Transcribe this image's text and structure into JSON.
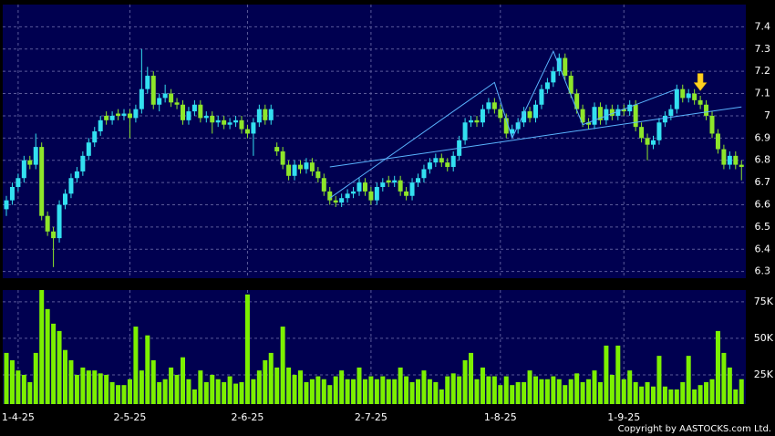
{
  "chart_data": {
    "type": "candlestick",
    "categories": [
      null,
      null,
      "1-4-25",
      null,
      null,
      null,
      null,
      null,
      null,
      null,
      null,
      null,
      null,
      null,
      null,
      null,
      null,
      null,
      null,
      null,
      null,
      "2-5-25",
      null,
      null,
      null,
      null,
      null,
      null,
      null,
      null,
      null,
      null,
      null,
      null,
      null,
      null,
      null,
      null,
      null,
      null,
      null,
      "2-6-25",
      null,
      null,
      null,
      null,
      null,
      null,
      null,
      null,
      null,
      null,
      null,
      null,
      null,
      null,
      null,
      null,
      null,
      null,
      null,
      null,
      "2-7-25",
      null,
      null,
      null,
      null,
      null,
      null,
      null,
      null,
      null,
      null,
      null,
      null,
      null,
      null,
      null,
      null,
      null,
      null,
      null,
      null,
      null,
      "1-8-25",
      null,
      null,
      null,
      null,
      null,
      null,
      null,
      null,
      null,
      null,
      null,
      null,
      null,
      null,
      null,
      null,
      null,
      null,
      null,
      null,
      "1-9-25",
      null,
      null,
      null,
      null,
      null,
      null,
      null,
      null,
      null,
      null,
      null,
      null,
      null,
      null,
      null,
      null,
      null,
      null,
      null,
      null
    ],
    "candles": [
      [
        6.58,
        6.64,
        6.55,
        6.62
      ],
      [
        6.62,
        6.7,
        6.6,
        6.68
      ],
      [
        6.68,
        6.74,
        6.66,
        6.72
      ],
      [
        6.72,
        6.82,
        6.7,
        6.8
      ],
      [
        6.8,
        6.82,
        6.76,
        6.78
      ],
      [
        6.78,
        6.92,
        6.76,
        6.86
      ],
      [
        6.86,
        6.88,
        6.53,
        6.55
      ],
      [
        6.55,
        6.57,
        6.46,
        6.48
      ],
      [
        6.48,
        6.5,
        6.32,
        6.45
      ],
      [
        6.45,
        6.62,
        6.43,
        6.6
      ],
      [
        6.6,
        6.67,
        6.58,
        6.65
      ],
      [
        6.65,
        6.74,
        6.63,
        6.72
      ],
      [
        6.72,
        6.77,
        6.7,
        6.75
      ],
      [
        6.75,
        6.84,
        6.73,
        6.82
      ],
      [
        6.82,
        6.9,
        6.8,
        6.88
      ],
      [
        6.88,
        6.95,
        6.86,
        6.93
      ],
      [
        6.93,
        7.0,
        6.91,
        6.98
      ],
      [
        7.0,
        7.02,
        6.96,
        6.98
      ],
      [
        6.98,
        7.02,
        6.96,
        7.0
      ],
      [
        7.01,
        7.03,
        6.98,
        7.0
      ],
      [
        7.0,
        7.03,
        6.98,
        7.01
      ],
      [
        7.01,
        7.03,
        6.9,
        6.99
      ],
      [
        6.99,
        7.05,
        6.97,
        7.03
      ],
      [
        7.03,
        7.3,
        7.01,
        7.12
      ],
      [
        7.12,
        7.22,
        7.1,
        7.18
      ],
      [
        7.18,
        7.2,
        7.03,
        7.05
      ],
      [
        7.05,
        7.1,
        7.02,
        7.08
      ],
      [
        7.08,
        7.14,
        7.06,
        7.1
      ],
      [
        7.1,
        7.12,
        7.04,
        7.06
      ],
      [
        7.06,
        7.08,
        7.03,
        7.05
      ],
      [
        7.05,
        7.07,
        6.96,
        6.98
      ],
      [
        6.98,
        7.04,
        6.96,
        7.02
      ],
      [
        7.02,
        7.07,
        7.0,
        7.05
      ],
      [
        7.05,
        7.07,
        6.97,
        6.99
      ],
      [
        6.99,
        7.02,
        6.97,
        7.0
      ],
      [
        7.0,
        7.02,
        6.92,
        6.97
      ],
      [
        6.97,
        7.0,
        6.95,
        6.98
      ],
      [
        6.98,
        7.0,
        6.94,
        6.96
      ],
      [
        6.96,
        6.99,
        6.94,
        6.97
      ],
      [
        6.97,
        7.0,
        6.95,
        6.98
      ],
      [
        6.98,
        7.0,
        6.92,
        6.94
      ],
      [
        6.94,
        6.96,
        6.9,
        6.92
      ],
      [
        6.92,
        6.99,
        6.82,
        6.97
      ],
      [
        6.97,
        7.05,
        6.95,
        7.03
      ],
      [
        7.03,
        7.05,
        6.96,
        6.98
      ],
      [
        6.98,
        7.05,
        6.96,
        7.03
      ],
      [
        6.86,
        6.88,
        6.82,
        6.84
      ],
      [
        6.84,
        6.86,
        6.76,
        6.78
      ],
      [
        6.78,
        6.8,
        6.71,
        6.73
      ],
      [
        6.73,
        6.8,
        6.71,
        6.78
      ],
      [
        6.78,
        6.8,
        6.74,
        6.76
      ],
      [
        6.76,
        6.81,
        6.74,
        6.79
      ],
      [
        6.79,
        6.81,
        6.73,
        6.75
      ],
      [
        6.75,
        6.77,
        6.7,
        6.72
      ],
      [
        6.72,
        6.74,
        6.64,
        6.66
      ],
      [
        6.66,
        6.68,
        6.6,
        6.62
      ],
      [
        6.62,
        6.64,
        6.59,
        6.61
      ],
      [
        6.61,
        6.65,
        6.59,
        6.63
      ],
      [
        6.63,
        6.67,
        6.61,
        6.65
      ],
      [
        6.65,
        6.68,
        6.63,
        6.66
      ],
      [
        6.66,
        6.72,
        6.64,
        6.7
      ],
      [
        6.7,
        6.72,
        6.64,
        6.66
      ],
      [
        6.66,
        6.68,
        6.6,
        6.62
      ],
      [
        6.62,
        6.7,
        6.6,
        6.68
      ],
      [
        6.68,
        6.72,
        6.66,
        6.7
      ],
      [
        6.71,
        6.73,
        6.68,
        6.7
      ],
      [
        6.7,
        6.73,
        6.68,
        6.71
      ],
      [
        6.71,
        6.73,
        6.64,
        6.66
      ],
      [
        6.66,
        6.68,
        6.62,
        6.64
      ],
      [
        6.64,
        6.72,
        6.62,
        6.7
      ],
      [
        6.7,
        6.74,
        6.68,
        6.72
      ],
      [
        6.72,
        6.78,
        6.7,
        6.76
      ],
      [
        6.76,
        6.81,
        6.74,
        6.79
      ],
      [
        6.79,
        6.83,
        6.77,
        6.81
      ],
      [
        6.81,
        6.83,
        6.77,
        6.79
      ],
      [
        6.79,
        6.81,
        6.75,
        6.77
      ],
      [
        6.77,
        6.84,
        6.75,
        6.82
      ],
      [
        6.82,
        6.91,
        6.8,
        6.89
      ],
      [
        6.89,
        6.99,
        6.87,
        6.97
      ],
      [
        6.97,
        7.0,
        6.95,
        6.98
      ],
      [
        6.98,
        7.0,
        6.95,
        6.97
      ],
      [
        6.97,
        7.05,
        6.95,
        7.03
      ],
      [
        7.03,
        7.08,
        7.01,
        7.06
      ],
      [
        7.06,
        7.08,
        7.01,
        7.03
      ],
      [
        7.03,
        7.05,
        6.97,
        6.99
      ],
      [
        6.99,
        7.01,
        6.9,
        6.92
      ],
      [
        6.92,
        6.96,
        6.9,
        6.94
      ],
      [
        6.94,
        6.99,
        6.92,
        6.97
      ],
      [
        6.97,
        7.04,
        6.95,
        7.02
      ],
      [
        7.02,
        7.04,
        6.97,
        6.99
      ],
      [
        6.99,
        7.07,
        6.97,
        7.05
      ],
      [
        7.05,
        7.14,
        7.03,
        7.12
      ],
      [
        7.12,
        7.17,
        7.1,
        7.15
      ],
      [
        7.15,
        7.22,
        7.13,
        7.2
      ],
      [
        7.2,
        7.28,
        7.18,
        7.26
      ],
      [
        7.26,
        7.28,
        7.16,
        7.18
      ],
      [
        7.18,
        7.2,
        7.08,
        7.1
      ],
      [
        7.1,
        7.12,
        7.01,
        7.03
      ],
      [
        7.03,
        7.05,
        6.95,
        6.97
      ],
      [
        6.97,
        6.99,
        6.94,
        6.96
      ],
      [
        6.96,
        7.06,
        6.94,
        7.04
      ],
      [
        7.04,
        7.06,
        6.96,
        6.98
      ],
      [
        6.98,
        7.05,
        6.96,
        7.03
      ],
      [
        7.03,
        7.05,
        6.98,
        7.0
      ],
      [
        7.0,
        7.05,
        6.98,
        7.03
      ],
      [
        7.03,
        7.05,
        7.0,
        7.02
      ],
      [
        7.02,
        7.07,
        7.0,
        7.05
      ],
      [
        7.05,
        7.07,
        6.93,
        6.95
      ],
      [
        6.95,
        6.97,
        6.88,
        6.9
      ],
      [
        6.9,
        6.92,
        6.8,
        6.87
      ],
      [
        6.87,
        6.91,
        6.85,
        6.89
      ],
      [
        6.89,
        6.99,
        6.87,
        6.97
      ],
      [
        6.97,
        7.02,
        6.95,
        7.0
      ],
      [
        7.0,
        7.05,
        6.98,
        7.03
      ],
      [
        7.03,
        7.14,
        7.01,
        7.12
      ],
      [
        7.12,
        7.14,
        7.06,
        7.08
      ],
      [
        7.08,
        7.12,
        7.06,
        7.1
      ],
      [
        7.1,
        7.12,
        7.05,
        7.07
      ],
      [
        7.07,
        7.09,
        7.03,
        7.05
      ],
      [
        7.05,
        7.07,
        6.98,
        7.0
      ],
      [
        7.0,
        7.02,
        6.9,
        6.92
      ],
      [
        6.92,
        6.94,
        6.83,
        6.85
      ],
      [
        6.85,
        6.87,
        6.76,
        6.78
      ],
      [
        6.78,
        6.84,
        6.76,
        6.82
      ],
      [
        6.82,
        6.84,
        6.76,
        6.78
      ],
      [
        6.78,
        6.8,
        6.71,
        6.77
      ]
    ],
    "volume": [
      40000,
      35000,
      28000,
      25000,
      20000,
      40000,
      83000,
      70000,
      60000,
      55000,
      42000,
      35000,
      25000,
      30000,
      28000,
      28000,
      26000,
      25000,
      20000,
      18000,
      18000,
      22000,
      58000,
      28000,
      52000,
      35000,
      20000,
      22000,
      30000,
      25000,
      37000,
      22000,
      15000,
      28000,
      20000,
      25000,
      22000,
      20000,
      24000,
      19000,
      20000,
      80000,
      22000,
      28000,
      35000,
      40000,
      30000,
      58000,
      30000,
      25000,
      28000,
      20000,
      22000,
      24000,
      22000,
      18000,
      24000,
      28000,
      22000,
      22000,
      30000,
      22000,
      24000,
      22000,
      24000,
      22000,
      22000,
      30000,
      24000,
      20000,
      22000,
      28000,
      22000,
      20000,
      15000,
      24000,
      26000,
      24000,
      35000,
      40000,
      22000,
      30000,
      24000,
      24000,
      18000,
      24000,
      18000,
      20000,
      20000,
      28000,
      24000,
      22000,
      22000,
      24000,
      22000,
      18000,
      22000,
      26000,
      20000,
      22000,
      28000,
      20000,
      45000,
      25000,
      45000,
      22000,
      28000,
      20000,
      17000,
      20000,
      17000,
      38000,
      17000,
      15000,
      15000,
      20000,
      38000,
      15000,
      18000,
      20000,
      22000,
      55000,
      40000,
      30000,
      15000,
      22000
    ],
    "ylim": [
      6.27,
      7.5
    ],
    "yticks": [
      6.3,
      6.4,
      6.5,
      6.6,
      6.7,
      6.8,
      6.9,
      7,
      7.1,
      7.2,
      7.3,
      7.4
    ],
    "volume_ylim": [
      5000,
      83000
    ],
    "volume_yticks": [
      {
        "value": 25000,
        "label": "25K"
      },
      {
        "value": 50000,
        "label": "50K"
      },
      {
        "value": 75000,
        "label": "75K"
      }
    ],
    "trendlines": [
      {
        "x": [
          55,
          125
        ],
        "y": [
          6.77,
          7.04
        ]
      },
      {
        "x": [
          55,
          83,
          86,
          93,
          98,
          114
        ],
        "y": [
          6.63,
          7.15,
          6.9,
          7.29,
          6.96,
          7.12
        ]
      }
    ],
    "trendline_color": "#5ab4ff",
    "arrow": {
      "index": 118,
      "price": 7.1
    },
    "up_color": "#33e0f0",
    "down_color": "#8ee62a",
    "volume_color": "#7cf000",
    "grid": true,
    "copyright": "Copyright by AASTOCKS.com Ltd."
  }
}
